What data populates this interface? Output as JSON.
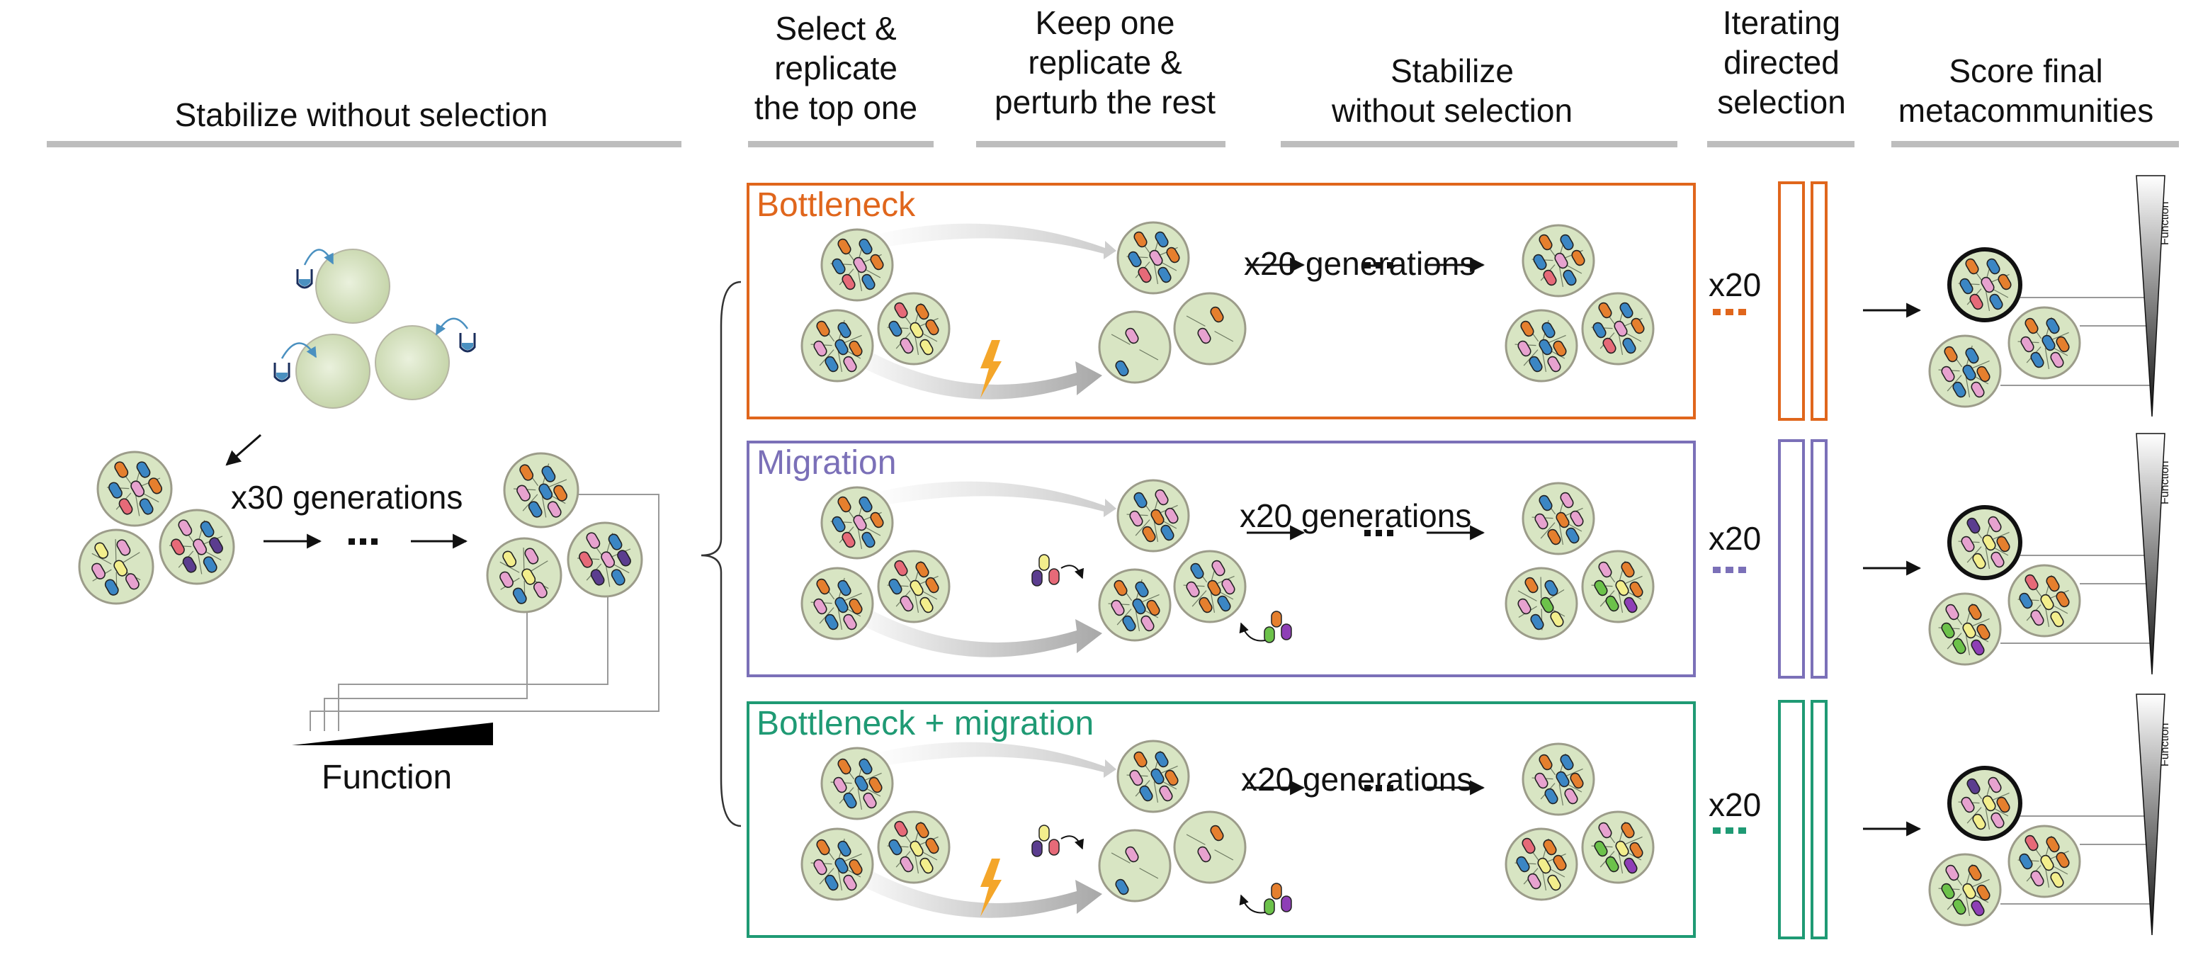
{
  "headers": {
    "stabilize_left": "Stabilize without selection",
    "select": "Select &\nreplicate\nthe top one",
    "keep": "Keep one\nreplicate &\nperturb the rest",
    "stabilize_mid": "Stabilize\nwithout selection",
    "iterating": "Iterating\ndirected\nselection",
    "score": "Score final\nmetacommunities"
  },
  "left": {
    "generations": "x30 generations",
    "function_label": "Function"
  },
  "treatments": [
    {
      "label": "Bottleneck",
      "generations": "x20 generations",
      "repeat": "x20",
      "color": "#e0661c"
    },
    {
      "label": "Migration",
      "generations": "x20 generations",
      "repeat": "x20",
      "color": "#7b70b8"
    },
    {
      "label": "Bottleneck + migration",
      "generations": "x20 generations",
      "repeat": "x20",
      "color": "#1f9a74"
    }
  ],
  "function_tag": "Function",
  "colors": {
    "community_fill": "#d8e5c3",
    "community_edge": "#9c9c8a",
    "rule": "#bdbdbd",
    "lightning": "#f4a62a"
  }
}
